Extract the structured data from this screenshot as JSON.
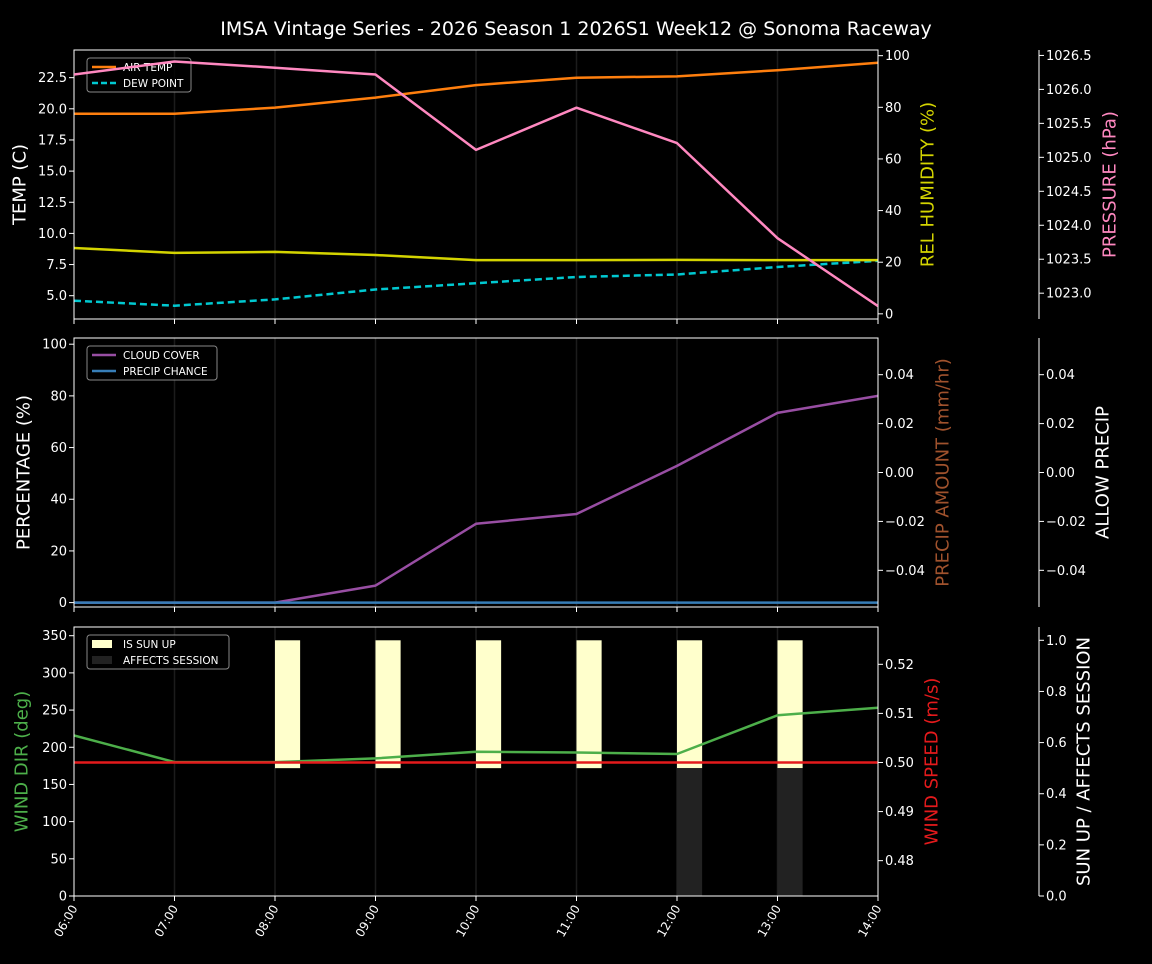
{
  "title": "IMSA Vintage Series - 2026 Season 1 2026S1 Week12 @ Sonoma Raceway",
  "chart_data": [
    {
      "type": "line",
      "x": [
        "06:00",
        "07:00",
        "08:00",
        "09:00",
        "10:00",
        "11:00",
        "12:00",
        "13:00",
        "14:00"
      ],
      "grid": "vertical",
      "legend_placement": "upper-left",
      "axes": [
        {
          "side": "left",
          "label": "TEMP (C)",
          "label_color": "#ffffff",
          "ylim": [
            3.13,
            24.72
          ],
          "ticks": [
            5.0,
            7.5,
            10.0,
            12.5,
            15.0,
            17.5,
            20.0,
            22.5
          ],
          "tick_labels": [
            "5.0",
            "7.5",
            "10.0",
            "12.5",
            "15.0",
            "17.5",
            "20.0",
            "22.5"
          ]
        },
        {
          "side": "right",
          "label": "REL HUMIDITY (%)",
          "label_color": "#d4d400",
          "ylim": [
            -2.0,
            102.2
          ],
          "ticks": [
            0,
            20,
            40,
            60,
            80,
            100
          ],
          "tick_labels": [
            "0",
            "20",
            "40",
            "60",
            "80",
            "100"
          ]
        },
        {
          "side": "right-outer",
          "label": "PRESSURE (hPa)",
          "label_color": "#ff88c0",
          "ylim": [
            1022.62,
            1026.58
          ],
          "ticks": [
            1023.0,
            1023.5,
            1024.0,
            1024.5,
            1025.0,
            1025.5,
            1026.0,
            1026.5
          ],
          "tick_labels": [
            "1023.0",
            "1023.5",
            "1024.0",
            "1024.5",
            "1025.0",
            "1025.5",
            "1026.0",
            "1026.5"
          ]
        }
      ],
      "series": [
        {
          "name": "AIR TEMP",
          "axis": 0,
          "color": "#ff7f0e",
          "dash": false,
          "legend": true,
          "values": [
            19.6,
            19.6,
            20.1,
            20.9,
            21.9,
            22.5,
            22.6,
            23.1,
            23.7
          ]
        },
        {
          "name": "DEW POINT",
          "axis": 0,
          "color": "#00c8d0",
          "dash": true,
          "legend": true,
          "values": [
            4.6,
            4.2,
            4.7,
            5.5,
            6.0,
            6.5,
            6.7,
            7.3,
            7.8
          ]
        },
        {
          "axis": 1,
          "color": "#d4d400",
          "dash": false,
          "legend": false,
          "values": [
            25.5,
            23.6,
            24.0,
            22.8,
            20.8,
            20.8,
            20.9,
            20.8,
            20.8
          ]
        },
        {
          "axis": 2,
          "color": "#ff88c0",
          "dash": false,
          "legend": false,
          "values": [
            1026.22,
            1026.41,
            1026.32,
            1026.22,
            1025.11,
            1025.73,
            1025.21,
            1023.81,
            1022.81
          ]
        }
      ]
    },
    {
      "type": "line",
      "x": [
        "06:00",
        "07:00",
        "08:00",
        "09:00",
        "10:00",
        "11:00",
        "12:00",
        "13:00",
        "14:00"
      ],
      "grid": "vertical",
      "legend_placement": "upper-left",
      "axes": [
        {
          "side": "left",
          "label": "PERCENTAGE (%)",
          "label_color": "#ffffff",
          "ylim": [
            -1.7,
            102.4
          ],
          "ticks": [
            0,
            20,
            40,
            60,
            80,
            100
          ],
          "tick_labels": [
            "0",
            "20",
            "40",
            "60",
            "80",
            "100"
          ]
        },
        {
          "side": "right",
          "label": "PRECIP AMOUNT (mm/hr)",
          "label_color": "#a0522d",
          "ylim": [
            -0.055,
            0.055
          ],
          "ticks": [
            -0.04,
            -0.02,
            0.0,
            0.02,
            0.04
          ],
          "tick_labels": [
            "−0.04",
            "−0.02",
            "0.00",
            "0.02",
            "0.04"
          ]
        },
        {
          "side": "right-outer",
          "label": "ALLOW PRECIP",
          "label_color": "#ffffff",
          "ylim": [
            -0.055,
            0.055
          ],
          "ticks": [
            -0.04,
            -0.02,
            0.0,
            0.02,
            0.04
          ],
          "tick_labels": [
            "−0.04",
            "−0.02",
            "0.00",
            "0.02",
            "0.04"
          ]
        }
      ],
      "series": [
        {
          "name": "CLOUD COVER",
          "axis": 0,
          "color": "#984ea3",
          "dash": false,
          "legend": true,
          "values": [
            0,
            0,
            0,
            6.6,
            30.5,
            34.3,
            52.9,
            73.4,
            80.0
          ]
        },
        {
          "name": "PRECIP CHANCE",
          "axis": 0,
          "color": "#377eb8",
          "dash": false,
          "legend": true,
          "values": [
            0,
            0,
            0,
            0,
            0,
            0,
            0,
            0,
            0
          ]
        }
      ]
    },
    {
      "type": "line",
      "x": [
        "06:00",
        "07:00",
        "08:00",
        "09:00",
        "10:00",
        "11:00",
        "12:00",
        "13:00",
        "14:00"
      ],
      "grid": "vertical",
      "legend_placement": "upper-left",
      "axes": [
        {
          "side": "left",
          "label": "WIND DIR (deg)",
          "label_color": "#4daf4a",
          "ylim": [
            0,
            361.7
          ],
          "ticks": [
            0,
            50,
            100,
            150,
            200,
            250,
            300,
            350
          ],
          "tick_labels": [
            "0",
            "50",
            "100",
            "150",
            "200",
            "250",
            "300",
            "350"
          ]
        },
        {
          "side": "right",
          "label": "WIND SPEED (m/s)",
          "label_color": "#e41a1c",
          "ylim": [
            0.4728,
            0.5276
          ],
          "ticks": [
            0.48,
            0.49,
            0.5,
            0.51,
            0.52
          ],
          "tick_labels": [
            "0.48",
            "0.49",
            "0.50",
            "0.51",
            "0.52"
          ]
        },
        {
          "side": "right-outer",
          "label": "SUN UP / AFFECTS SESSION",
          "label_color": "#ffffff",
          "ylim": [
            0,
            1.052
          ],
          "ticks": [
            0,
            0.2,
            0.4,
            0.6,
            0.8,
            1.0
          ],
          "tick_labels": [
            "0.0",
            "0.2",
            "0.4",
            "0.6",
            "0.8",
            "1.0"
          ]
        }
      ],
      "bars": [
        {
          "name": "IS SUN UP",
          "axis": 2,
          "color": "#ffffcc",
          "range": [
            0.5,
            1.0
          ],
          "values": [
            0,
            0,
            1,
            1,
            1,
            1,
            1,
            1,
            1
          ]
        },
        {
          "name": "AFFECTS SESSION",
          "axis": 2,
          "color": "#222222",
          "range": [
            0,
            0.5
          ],
          "values": [
            0,
            0,
            0,
            0,
            0,
            0,
            1,
            1,
            1
          ]
        }
      ],
      "series": [
        {
          "axis": 0,
          "color": "#4daf4a",
          "dash": false,
          "legend": false,
          "values": [
            216,
            180,
            180,
            185,
            194,
            193,
            191,
            243,
            253
          ]
        },
        {
          "axis": 1,
          "color": "#e41a1c",
          "dash": false,
          "legend": false,
          "values": [
            0.5,
            0.5,
            0.5,
            0.5,
            0.5,
            0.5,
            0.5,
            0.5,
            0.5
          ]
        }
      ]
    }
  ]
}
